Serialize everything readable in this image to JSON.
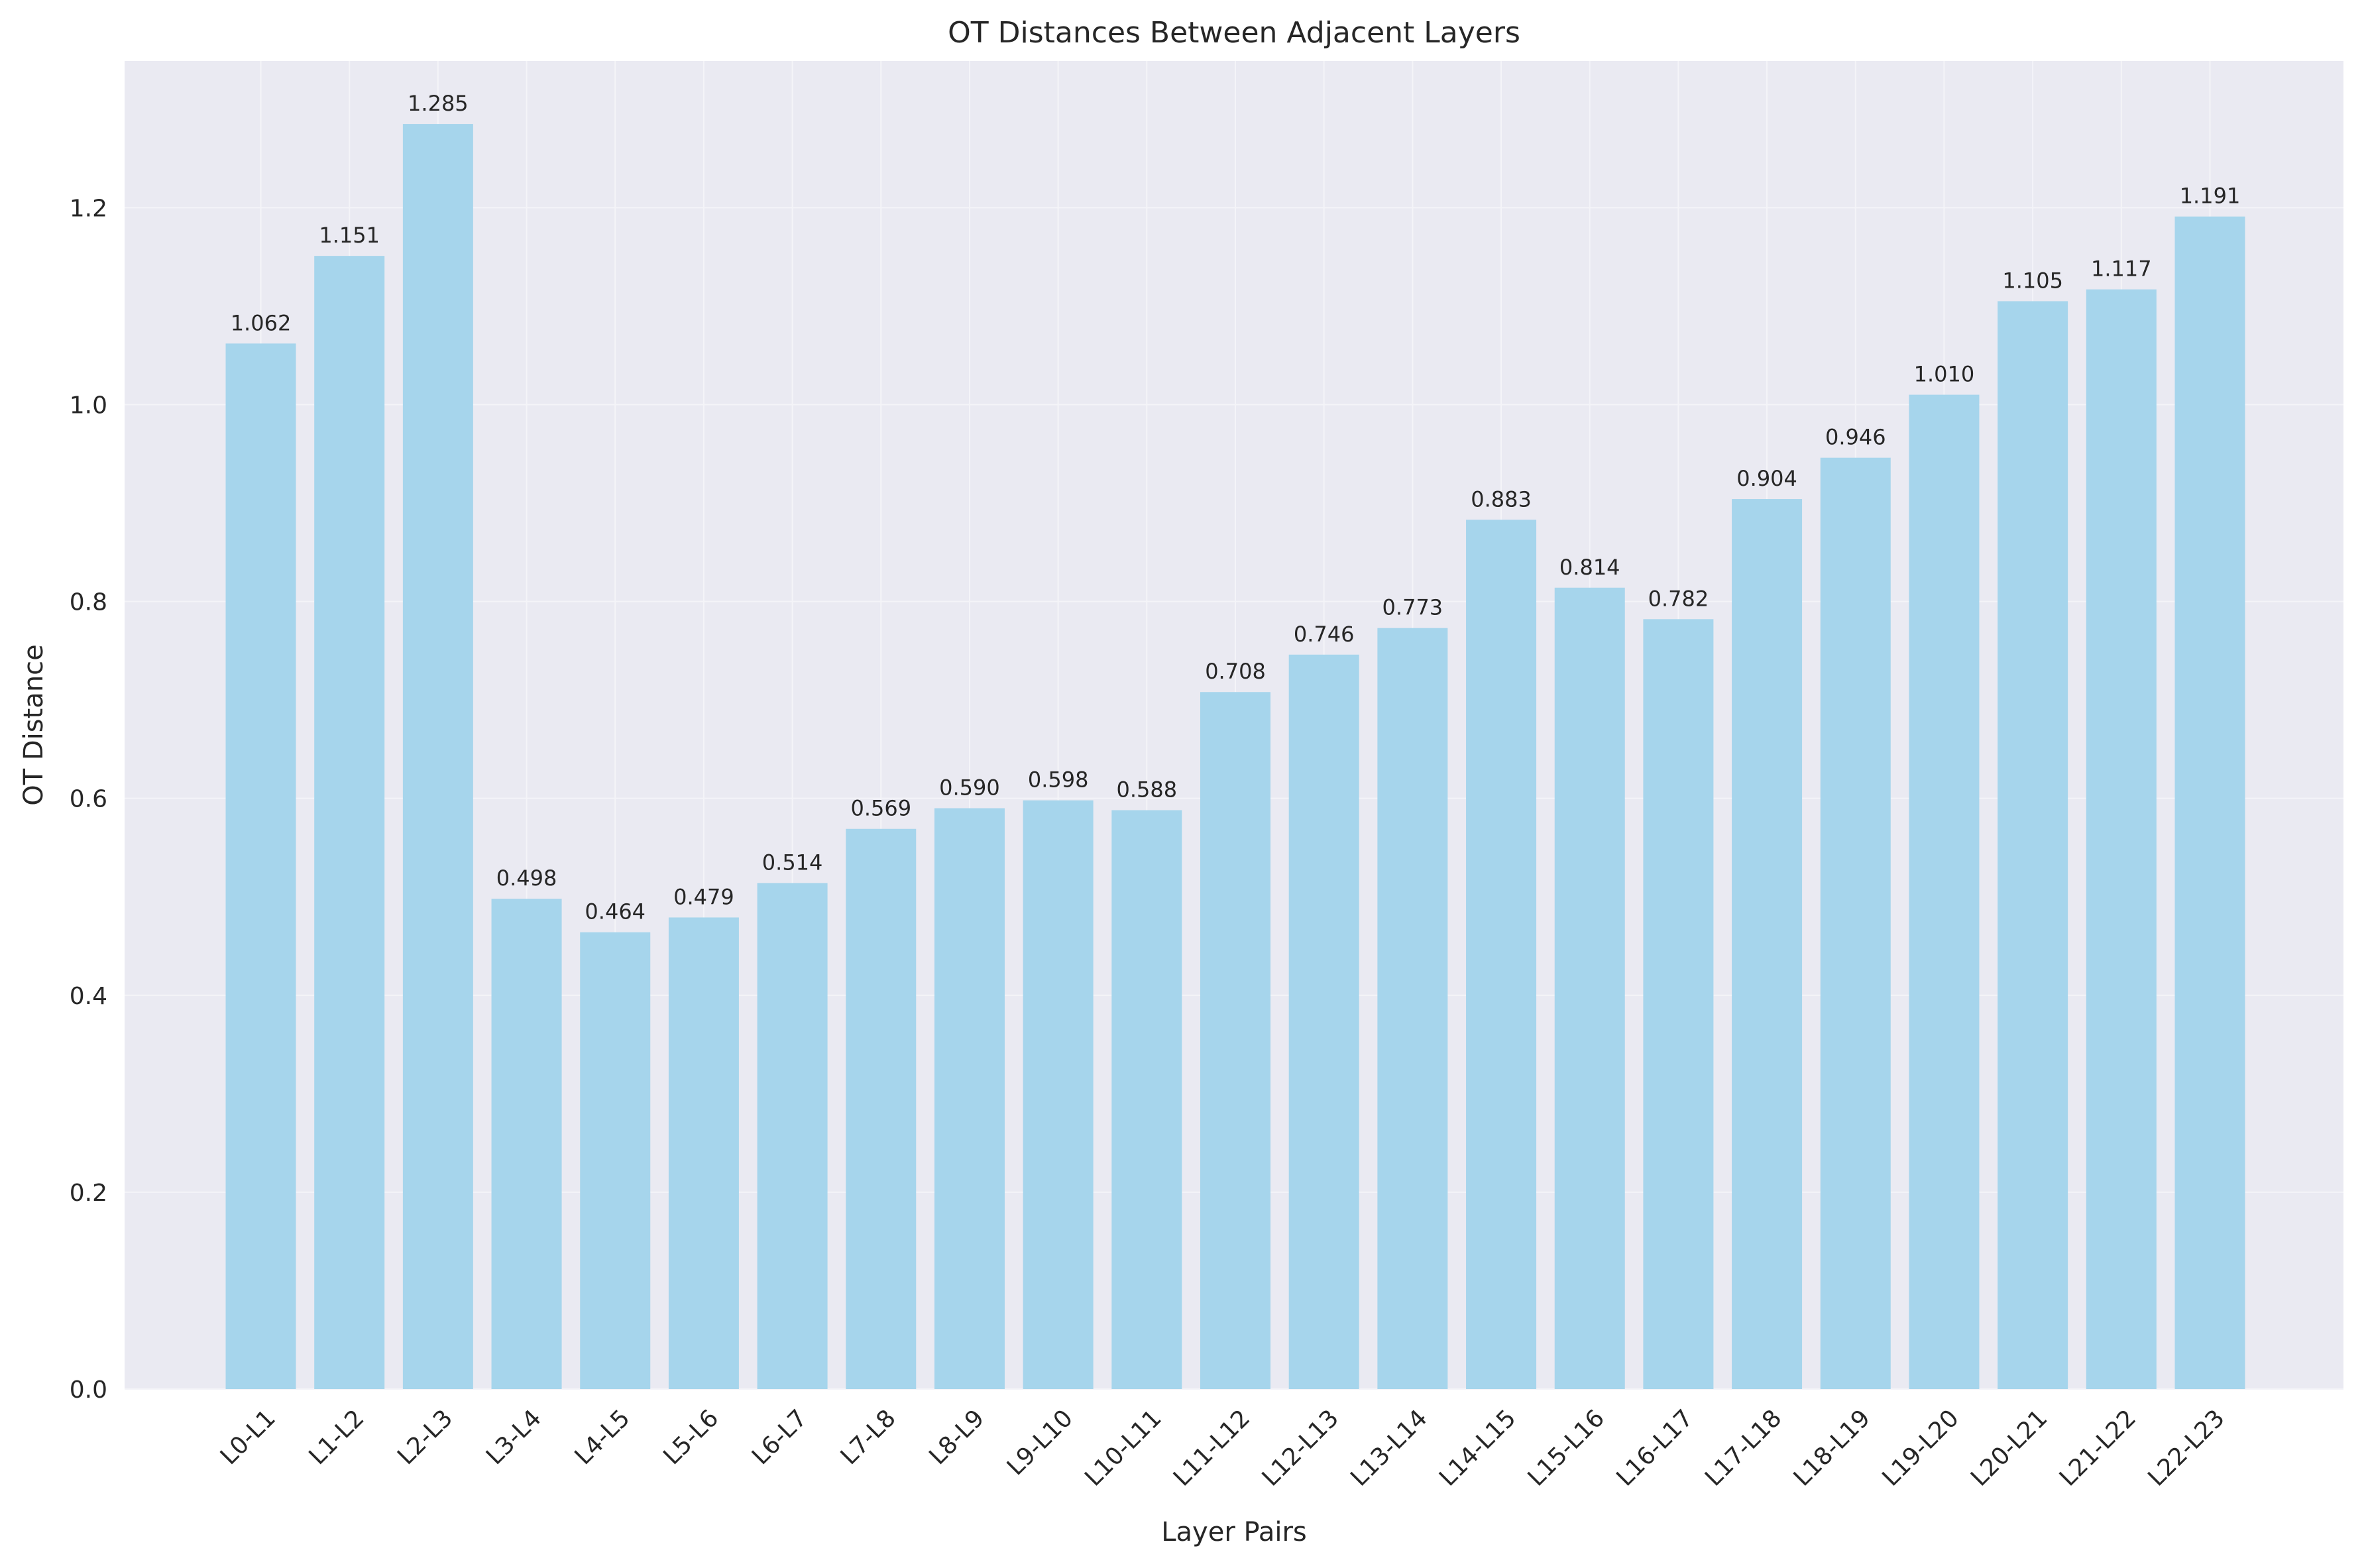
{
  "colors": {
    "plot_background": "#eaeaf2",
    "bar": "#a6d5ec",
    "grid": "#f4f4f8",
    "text": "#262626"
  },
  "chart_data": {
    "type": "bar",
    "title": "OT Distances Between Adjacent Layers",
    "xlabel": "Layer Pairs",
    "ylabel": "OT Distance",
    "categories": [
      "L0-L1",
      "L1-L2",
      "L2-L3",
      "L3-L4",
      "L4-L5",
      "L5-L6",
      "L6-L7",
      "L7-L8",
      "L8-L9",
      "L9-L10",
      "L10-L11",
      "L11-L12",
      "L12-L13",
      "L13-L14",
      "L14-L15",
      "L15-L16",
      "L16-L17",
      "L17-L18",
      "L18-L19",
      "L19-L20",
      "L20-L21",
      "L21-L22",
      "L22-L23"
    ],
    "values": [
      1.062,
      1.151,
      1.285,
      0.498,
      0.464,
      0.479,
      0.514,
      0.569,
      0.59,
      0.598,
      0.588,
      0.708,
      0.746,
      0.773,
      0.883,
      0.814,
      0.782,
      0.904,
      0.946,
      1.01,
      1.105,
      1.117,
      1.191
    ],
    "value_labels": [
      "1.062",
      "1.151",
      "1.285",
      "0.498",
      "0.464",
      "0.479",
      "0.514",
      "0.569",
      "0.590",
      "0.598",
      "0.588",
      "0.708",
      "0.746",
      "0.773",
      "0.883",
      "0.814",
      "0.782",
      "0.904",
      "0.946",
      "1.010",
      "1.105",
      "1.117",
      "1.191"
    ],
    "ylim": [
      0,
      1.349
    ],
    "yticks": [
      0.0,
      0.2,
      0.4,
      0.6,
      0.8,
      1.0,
      1.2
    ],
    "ytick_labels": [
      "0.0",
      "0.2",
      "0.4",
      "0.6",
      "0.8",
      "1.0",
      "1.2"
    ],
    "grid": true,
    "legend": "none"
  }
}
